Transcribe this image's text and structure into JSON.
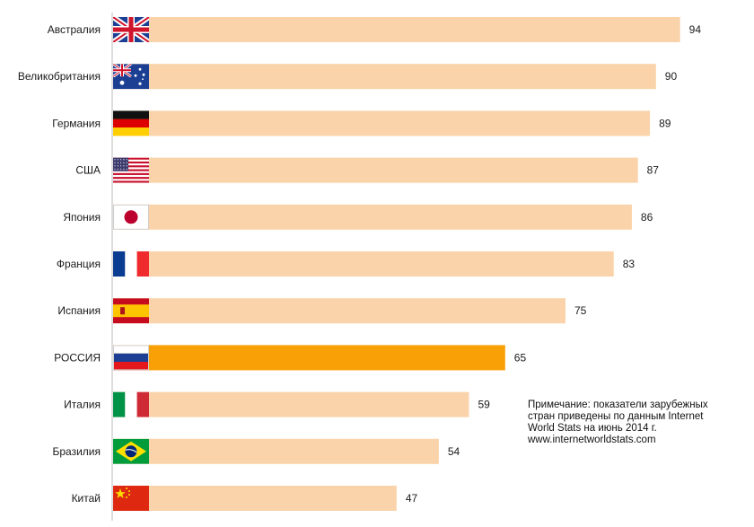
{
  "chart_data": {
    "type": "bar",
    "orientation": "horizontal",
    "categories": [
      "Австралия",
      "Великобритания",
      "Германия",
      "США",
      "Япония",
      "Франция",
      "Испания",
      "РОССИЯ",
      "Италия",
      "Бразилия",
      "Китай"
    ],
    "values": [
      94,
      90,
      89,
      87,
      86,
      83,
      75,
      65,
      59,
      54,
      47
    ],
    "flags": [
      "uk-flag-icon",
      "australia-flag-icon",
      "germany-flag-icon",
      "usa-flag-icon",
      "japan-flag-icon",
      "france-flag-icon",
      "spain-flag-icon",
      "russia-flag-icon",
      "italy-flag-icon",
      "brazil-flag-icon",
      "china-flag-icon"
    ],
    "highlighted_category": "РОССИЯ",
    "colors": {
      "bar": "#fbd3aa",
      "highlight": "#f8a005"
    },
    "xlim": [
      0,
      100
    ],
    "grid": false,
    "legend": "none"
  },
  "note": {
    "line1": "Примечание: показатели зарубежных",
    "line2": "стран приведены по данным Internet",
    "line3": "World Stats на июнь 2014 г.",
    "line4": "www.internetworldstats.com"
  }
}
